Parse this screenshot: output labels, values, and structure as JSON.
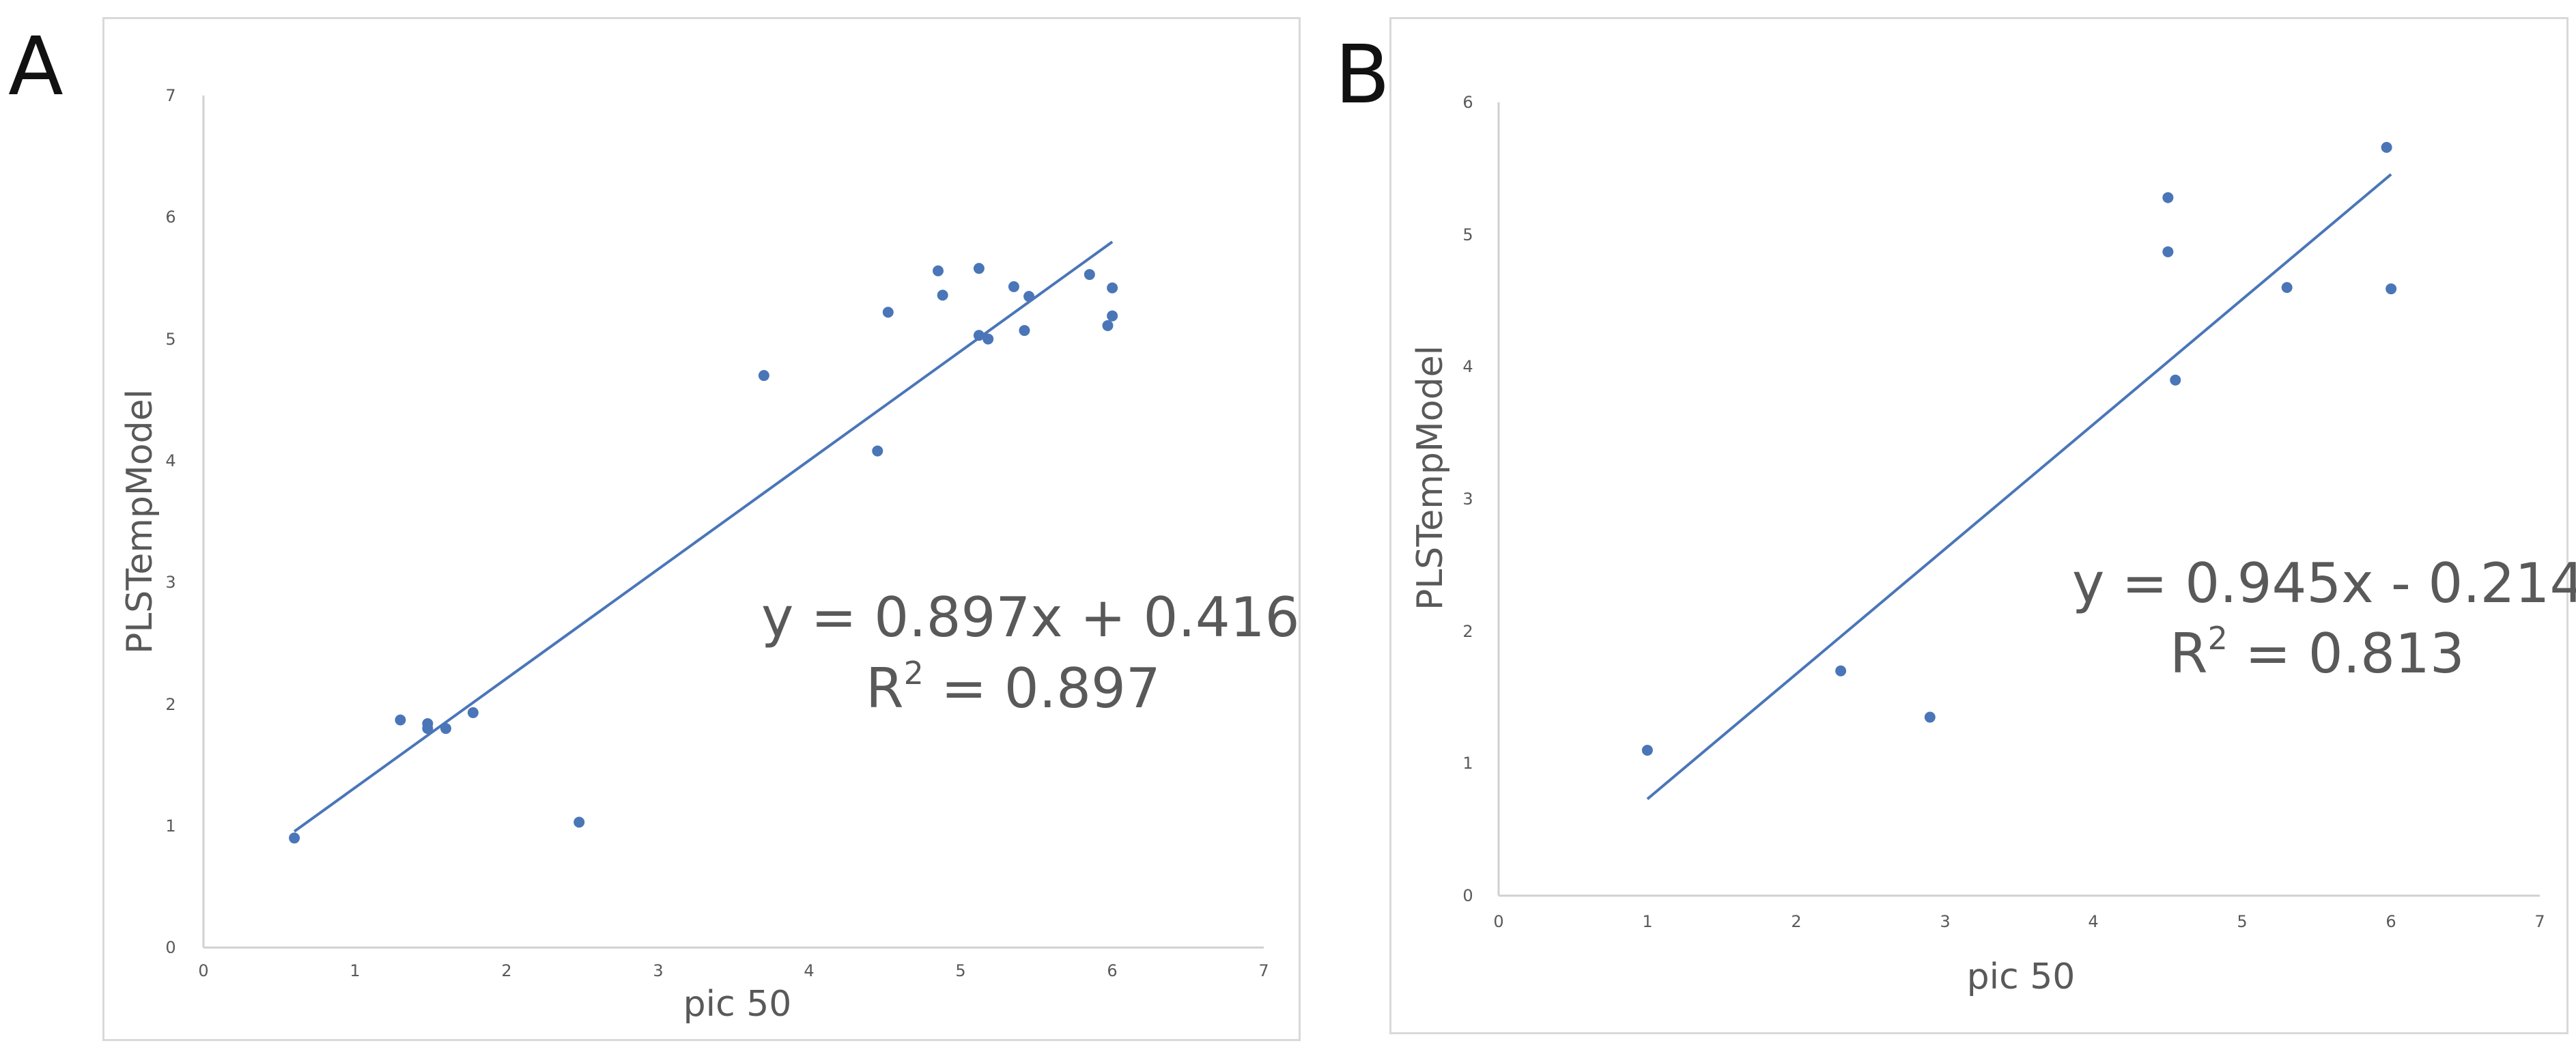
{
  "panels": [
    {
      "letter": "A"
    },
    {
      "letter": "B"
    }
  ],
  "chart_data": [
    {
      "type": "scatter",
      "title": "",
      "xlabel": "pic 50",
      "ylabel": "PLSTempModel",
      "xlim": [
        0,
        7
      ],
      "ylim": [
        0,
        7
      ],
      "xticks": [
        "0",
        "1",
        "2",
        "3",
        "4",
        "5",
        "6",
        "7"
      ],
      "yticks": [
        "0",
        "1",
        "2",
        "3",
        "4",
        "5",
        "6",
        "7"
      ],
      "grid": false,
      "color": "#4a76b8",
      "points": [
        [
          0.6,
          0.9
        ],
        [
          1.3,
          1.87
        ],
        [
          1.48,
          1.84
        ],
        [
          1.48,
          1.8
        ],
        [
          1.6,
          1.8
        ],
        [
          1.78,
          1.93
        ],
        [
          2.48,
          1.03
        ],
        [
          3.7,
          4.7
        ],
        [
          4.45,
          4.08
        ],
        [
          4.52,
          5.22
        ],
        [
          4.85,
          5.56
        ],
        [
          4.88,
          5.36
        ],
        [
          5.12,
          5.58
        ],
        [
          5.12,
          5.03
        ],
        [
          5.18,
          5.0
        ],
        [
          5.35,
          5.43
        ],
        [
          5.42,
          5.07
        ],
        [
          5.45,
          5.35
        ],
        [
          5.85,
          5.53
        ],
        [
          5.97,
          5.11
        ],
        [
          6.0,
          5.42
        ],
        [
          6.0,
          5.19
        ]
      ],
      "trendline": {
        "slope": 0.897,
        "intercept": 0.416,
        "x_start": 0.6,
        "x_end": 6.0
      },
      "equation": "y = 0.897x + 0.416",
      "r2_prefix": "R",
      "r2_sup": "2",
      "r2_value": " = 0.897"
    },
    {
      "type": "scatter",
      "title": "",
      "xlabel": "pic 50",
      "ylabel": "PLSTempModel",
      "xlim": [
        0,
        7
      ],
      "ylim": [
        0,
        6
      ],
      "xticks": [
        "0",
        "1",
        "2",
        "3",
        "4",
        "5",
        "6",
        "7"
      ],
      "yticks": [
        "0",
        "1",
        "2",
        "3",
        "4",
        "5",
        "6"
      ],
      "grid": false,
      "color": "#4a76b8",
      "points": [
        [
          1.0,
          1.1
        ],
        [
          2.3,
          1.7
        ],
        [
          2.9,
          1.35
        ],
        [
          4.5,
          5.28
        ],
        [
          4.5,
          4.87
        ],
        [
          4.55,
          3.9
        ],
        [
          5.3,
          4.6
        ],
        [
          5.97,
          5.66
        ],
        [
          6.0,
          4.59
        ]
      ],
      "trendline": {
        "slope": 0.945,
        "intercept": -0.214,
        "x_start": 1.0,
        "x_end": 6.0
      },
      "equation": "y = 0.945x - 0.214",
      "r2_prefix": "R",
      "r2_sup": "2",
      "r2_value": " = 0.813"
    }
  ]
}
